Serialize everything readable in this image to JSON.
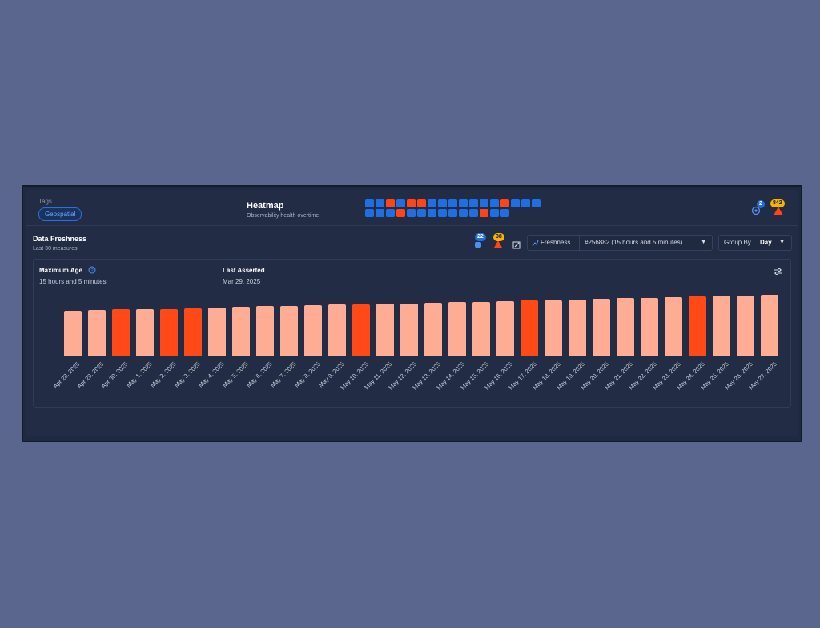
{
  "header": {
    "tags_label": "Tags",
    "tag": "Geospatial",
    "heatmap_title": "Heatmap",
    "heatmap_subtitle": "Observability health overtime",
    "heatmap_rows": [
      [
        "ok",
        "ok",
        "bad",
        "ok",
        "bad",
        "bad",
        "ok",
        "ok",
        "ok",
        "ok",
        "ok",
        "ok",
        "ok",
        "bad",
        "ok",
        "ok",
        "ok"
      ],
      [
        "ok",
        "ok",
        "ok",
        "bad",
        "ok",
        "ok",
        "ok",
        "ok",
        "ok",
        "ok",
        "ok",
        "bad",
        "ok",
        "ok"
      ]
    ],
    "watch_count": "2",
    "alert_count": "842"
  },
  "colors": {
    "ok": "#1f6fe0",
    "bad": "#ff4517",
    "light_bar": "#ffac95",
    "dark_bar": "#ff4a18"
  },
  "freshness": {
    "title": "Data Freshness",
    "subtitle": "Last 30 measures",
    "watch_count": "22",
    "alert_count": "38",
    "metric_label": "Freshness",
    "run_label": "#256882  (15 hours and 5 minutes)",
    "group_by_label": "Group By",
    "group_by_value": "Day",
    "max_age_label": "Maximum Age",
    "max_age_value": "15 hours and 5 minutes",
    "last_asserted_label": "Last Asserted",
    "last_asserted_value": "Mar 29, 2025"
  },
  "chart_data": {
    "type": "bar",
    "title": "Data Freshness",
    "categories": [
      "Apr 28, 2025",
      "Apr 29, 2025",
      "Apr 30, 2025",
      "May 1, 2025",
      "May 2, 2025",
      "May 3, 2025",
      "May 4, 2025",
      "May 5, 2025",
      "May 6, 2025",
      "May 7, 2025",
      "May 8, 2025",
      "May 9, 2025",
      "May 10, 2025",
      "May 11, 2025",
      "May 12, 2025",
      "May 13, 2025",
      "May 14, 2025",
      "May 15, 2025",
      "May 16, 2025",
      "May 17, 2025",
      "May 18, 2025",
      "May 19, 2025",
      "May 20, 2025",
      "May 21, 2025",
      "May 22, 2025",
      "May 23, 2025",
      "May 24, 2025",
      "May 25, 2025",
      "May 26, 2025",
      "May 27, 2025"
    ],
    "values": [
      57,
      58,
      59,
      60,
      60,
      61,
      62,
      63,
      64,
      64,
      65,
      66,
      66,
      67,
      67,
      68,
      69,
      69,
      70,
      71,
      71,
      72,
      73,
      74,
      74,
      75,
      76,
      77,
      77,
      78
    ],
    "alerts": [
      false,
      false,
      true,
      false,
      true,
      true,
      false,
      false,
      false,
      false,
      false,
      false,
      true,
      false,
      false,
      false,
      false,
      false,
      false,
      true,
      false,
      false,
      false,
      false,
      false,
      false,
      true,
      false,
      false,
      false
    ],
    "ylim": [
      0,
      80
    ],
    "xlabel": "",
    "ylabel": ""
  }
}
